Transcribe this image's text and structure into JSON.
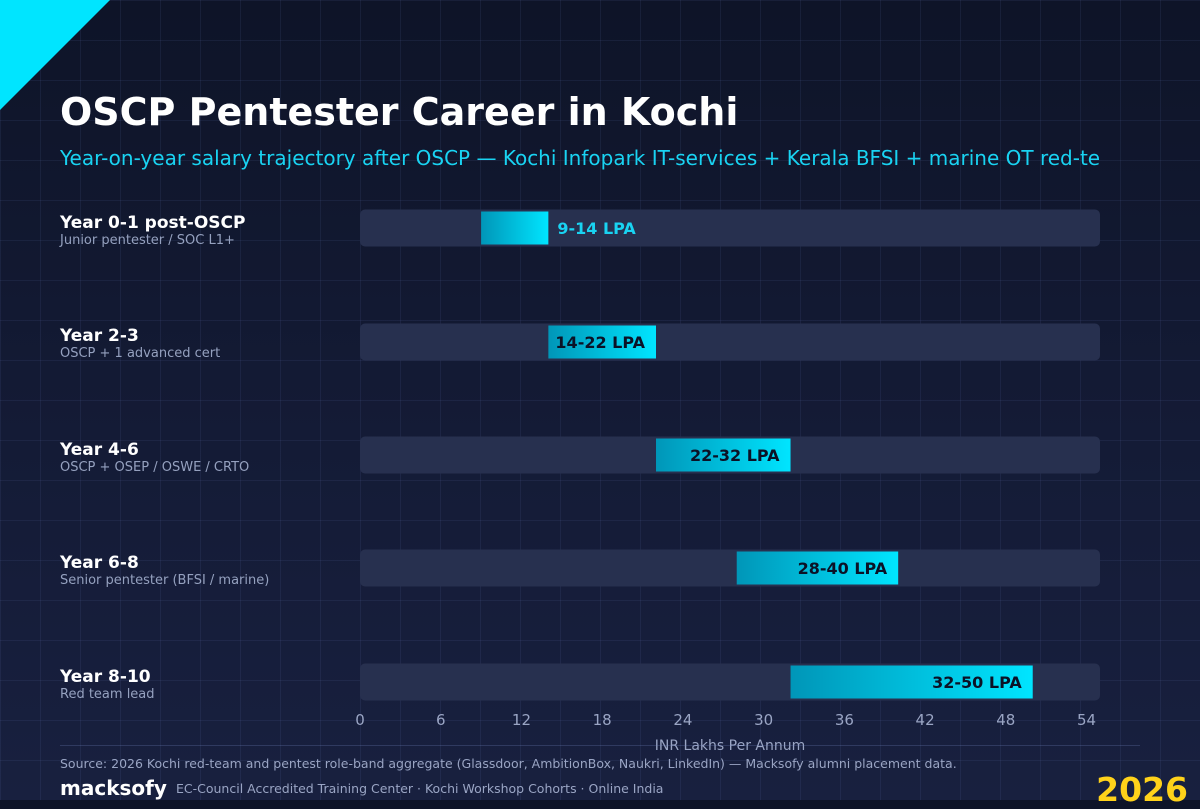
{
  "header": {
    "title": "OSCP Pentester Career in Kochi",
    "subtitle": "Year-on-year salary trajectory after OSCP — Kochi Infopark IT-services + Kerala BFSI + marine OT red-te"
  },
  "rows": [
    {
      "title": "Year 0-1 post-OSCP",
      "subtitle": "Junior pentester / SOC L1+"
    },
    {
      "title": "Year 2-3",
      "subtitle": "OSCP + 1 advanced cert"
    },
    {
      "title": "Year 4-6",
      "subtitle": "OSCP + OSEP / OSWE / CRTO"
    },
    {
      "title": "Year 6-8",
      "subtitle": "Senior pentester (BFSI / marine)"
    },
    {
      "title": "Year 8-10",
      "subtitle": "Red team lead"
    }
  ],
  "chart_data": {
    "type": "bar",
    "orientation": "horizontal-range",
    "categories": [
      "Year 0-1 post-OSCP",
      "Year 2-3",
      "Year 4-6",
      "Year 6-8",
      "Year 8-10"
    ],
    "ranges": [
      [
        9,
        14
      ],
      [
        14,
        22
      ],
      [
        22,
        32
      ],
      [
        28,
        40
      ],
      [
        32,
        50
      ]
    ],
    "data_labels": [
      "9-14 LPA",
      "14-22 LPA",
      "22-32 LPA",
      "28-40 LPA",
      "32-50 LPA"
    ],
    "xlabel": "INR Lakhs Per Annum",
    "xlim": [
      0,
      55
    ],
    "xticks": [
      0,
      6,
      12,
      18,
      24,
      30,
      36,
      42,
      48,
      54
    ],
    "colors": {
      "track": "#27304f",
      "bar_start": "#0096b8",
      "bar_end": "#00e5ff",
      "label_outside": "#19d3f2",
      "label_inside": "#0b1226",
      "tick": "#9aa5c4"
    }
  },
  "footer": {
    "source": "Source: 2026 Kochi red-team and pentest role-band aggregate (Glassdoor, AmbitionBox, Naukri, LinkedIn) — Macksofy alumni placement data.",
    "brand": "macksofy",
    "tagline": "EC-Council Accredited Training Center · Kochi Workshop Cohorts · Online India",
    "year": "2026"
  }
}
